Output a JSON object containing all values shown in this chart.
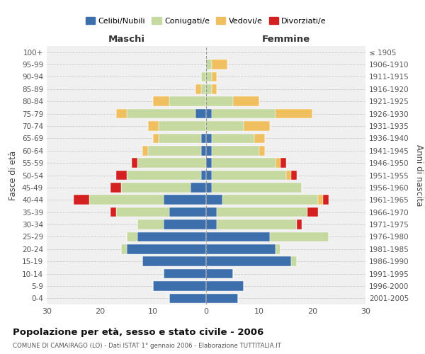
{
  "age_groups": [
    "100+",
    "95-99",
    "90-94",
    "85-89",
    "80-84",
    "75-79",
    "70-74",
    "65-69",
    "60-64",
    "55-59",
    "50-54",
    "45-49",
    "40-44",
    "35-39",
    "30-34",
    "25-29",
    "20-24",
    "15-19",
    "10-14",
    "5-9",
    "0-4"
  ],
  "birth_years": [
    "≤ 1905",
    "1906-1910",
    "1911-1915",
    "1916-1920",
    "1921-1925",
    "1926-1930",
    "1931-1935",
    "1936-1940",
    "1941-1945",
    "1946-1950",
    "1951-1955",
    "1956-1960",
    "1961-1965",
    "1966-1970",
    "1971-1975",
    "1976-1980",
    "1981-1985",
    "1986-1990",
    "1991-1995",
    "1996-2000",
    "2001-2005"
  ],
  "maschi": {
    "celibi": [
      0,
      0,
      0,
      0,
      0,
      2,
      0,
      1,
      1,
      0,
      1,
      3,
      8,
      7,
      8,
      13,
      15,
      12,
      8,
      10,
      7
    ],
    "coniugati": [
      0,
      0,
      1,
      1,
      7,
      13,
      9,
      8,
      10,
      13,
      14,
      13,
      14,
      10,
      5,
      2,
      1,
      0,
      0,
      0,
      0
    ],
    "vedovi": [
      0,
      0,
      0,
      1,
      3,
      2,
      2,
      1,
      1,
      0,
      0,
      0,
      0,
      0,
      0,
      0,
      0,
      0,
      0,
      0,
      0
    ],
    "divorziati": [
      0,
      0,
      0,
      0,
      0,
      0,
      0,
      0,
      0,
      1,
      2,
      2,
      3,
      1,
      0,
      0,
      0,
      0,
      0,
      0,
      0
    ]
  },
  "femmine": {
    "nubili": [
      0,
      0,
      0,
      0,
      0,
      1,
      0,
      1,
      1,
      1,
      1,
      1,
      3,
      2,
      2,
      12,
      13,
      16,
      5,
      7,
      6
    ],
    "coniugate": [
      0,
      1,
      1,
      1,
      5,
      12,
      7,
      8,
      9,
      12,
      14,
      17,
      18,
      17,
      15,
      11,
      1,
      1,
      0,
      0,
      0
    ],
    "vedove": [
      0,
      3,
      1,
      1,
      5,
      7,
      5,
      2,
      1,
      1,
      1,
      0,
      1,
      0,
      0,
      0,
      0,
      0,
      0,
      0,
      0
    ],
    "divorziate": [
      0,
      0,
      0,
      0,
      0,
      0,
      0,
      0,
      0,
      1,
      1,
      0,
      1,
      2,
      1,
      0,
      0,
      0,
      0,
      0,
      0
    ]
  },
  "colors": {
    "celibi": "#3d6fad",
    "coniugati": "#c5d9a0",
    "vedovi": "#f0c060",
    "divorziati": "#d42020"
  },
  "xlim": 30,
  "title": "Popolazione per età, sesso e stato civile - 2006",
  "subtitle": "COMUNE DI CAMAIRAGO (LO) - Dati ISTAT 1° gennaio 2006 - Elaborazione TUTTITALIA.IT",
  "ylabel_left": "Fasce di età",
  "ylabel_right": "Anni di nascita",
  "xlabel_maschi": "Maschi",
  "xlabel_femmine": "Femmine",
  "legend_labels": [
    "Celibi/Nubili",
    "Coniugati/e",
    "Vedovi/e",
    "Divorziati/e"
  ],
  "bg_color": "#ffffff",
  "plot_bg_color": "#f0f0f0"
}
